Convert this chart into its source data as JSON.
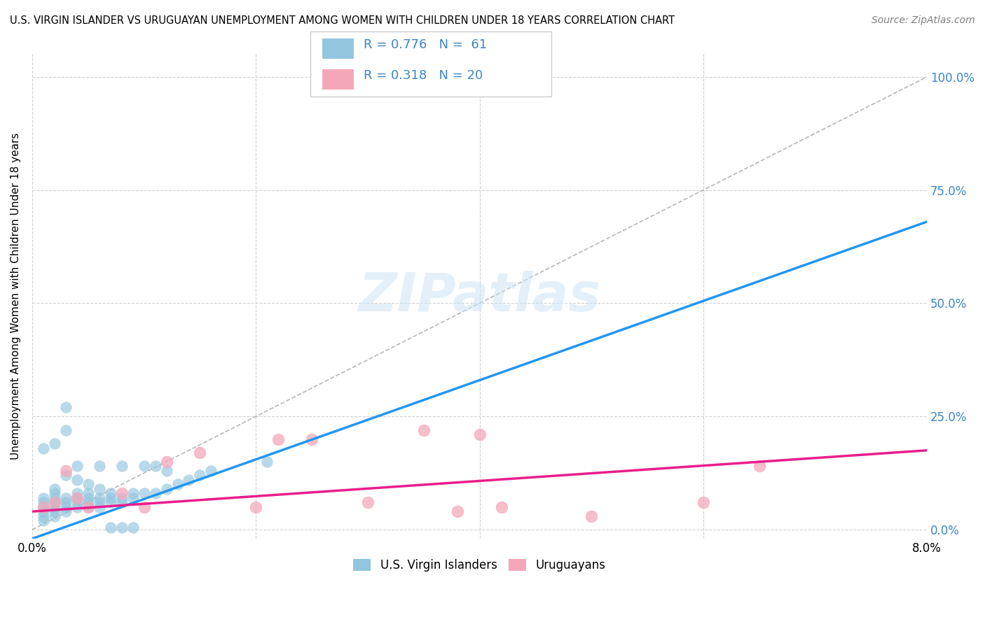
{
  "title": "U.S. VIRGIN ISLANDER VS URUGUAYAN UNEMPLOYMENT AMONG WOMEN WITH CHILDREN UNDER 18 YEARS CORRELATION CHART",
  "source": "Source: ZipAtlas.com",
  "ylabel": "Unemployment Among Women with Children Under 18 years",
  "ytick_labels": [
    "0.0%",
    "25.0%",
    "50.0%",
    "75.0%",
    "100.0%"
  ],
  "ytick_values": [
    0.0,
    0.25,
    0.5,
    0.75,
    1.0
  ],
  "xlim": [
    0.0,
    0.08
  ],
  "ylim": [
    -0.02,
    1.05
  ],
  "watermark": "ZIPatlas",
  "legend_r1": "R = 0.776",
  "legend_n1": "N =  61",
  "legend_r2": "R = 0.318",
  "legend_n2": "N = 20",
  "legend_label1": "U.S. Virgin Islanders",
  "legend_label2": "Uruguayans",
  "blue_color": "#92c5de",
  "blue_line_color": "#2196f3",
  "pink_color": "#f4a7b9",
  "pink_line_color": "#e91e8c",
  "diag_color": "#b0b0b0",
  "vi_x": [
    0.001,
    0.001,
    0.001,
    0.001,
    0.001,
    0.001,
    0.002,
    0.002,
    0.002,
    0.002,
    0.002,
    0.002,
    0.002,
    0.003,
    0.003,
    0.003,
    0.003,
    0.003,
    0.003,
    0.004,
    0.004,
    0.004,
    0.004,
    0.004,
    0.005,
    0.005,
    0.005,
    0.005,
    0.006,
    0.006,
    0.006,
    0.006,
    0.007,
    0.007,
    0.007,
    0.008,
    0.008,
    0.008,
    0.009,
    0.009,
    0.01,
    0.01,
    0.011,
    0.011,
    0.012,
    0.012,
    0.013,
    0.014,
    0.015,
    0.016,
    0.001,
    0.002,
    0.003,
    0.004,
    0.005,
    0.006,
    0.007,
    0.008,
    0.009,
    0.021,
    0.038
  ],
  "vi_y": [
    0.02,
    0.03,
    0.04,
    0.05,
    0.06,
    0.07,
    0.03,
    0.04,
    0.05,
    0.06,
    0.07,
    0.08,
    0.09,
    0.04,
    0.05,
    0.06,
    0.07,
    0.22,
    0.27,
    0.05,
    0.06,
    0.07,
    0.08,
    0.14,
    0.05,
    0.06,
    0.07,
    0.08,
    0.05,
    0.06,
    0.07,
    0.14,
    0.06,
    0.07,
    0.08,
    0.06,
    0.07,
    0.14,
    0.07,
    0.08,
    0.08,
    0.14,
    0.08,
    0.14,
    0.09,
    0.13,
    0.1,
    0.11,
    0.12,
    0.13,
    0.18,
    0.19,
    0.12,
    0.11,
    0.1,
    0.09,
    0.005,
    0.005,
    0.005,
    0.15,
    0.97
  ],
  "uru_x": [
    0.001,
    0.002,
    0.003,
    0.004,
    0.005,
    0.008,
    0.01,
    0.012,
    0.015,
    0.02,
    0.022,
    0.025,
    0.03,
    0.035,
    0.038,
    0.04,
    0.042,
    0.05,
    0.06,
    0.065
  ],
  "uru_y": [
    0.05,
    0.06,
    0.13,
    0.07,
    0.05,
    0.08,
    0.05,
    0.15,
    0.17,
    0.05,
    0.2,
    0.2,
    0.06,
    0.22,
    0.04,
    0.21,
    0.05,
    0.03,
    0.06,
    0.14
  ],
  "blue_line_x": [
    0.0,
    0.08
  ],
  "blue_line_y": [
    -0.02,
    0.68
  ],
  "pink_line_x": [
    0.0,
    0.08
  ],
  "pink_line_y": [
    0.04,
    0.175
  ]
}
